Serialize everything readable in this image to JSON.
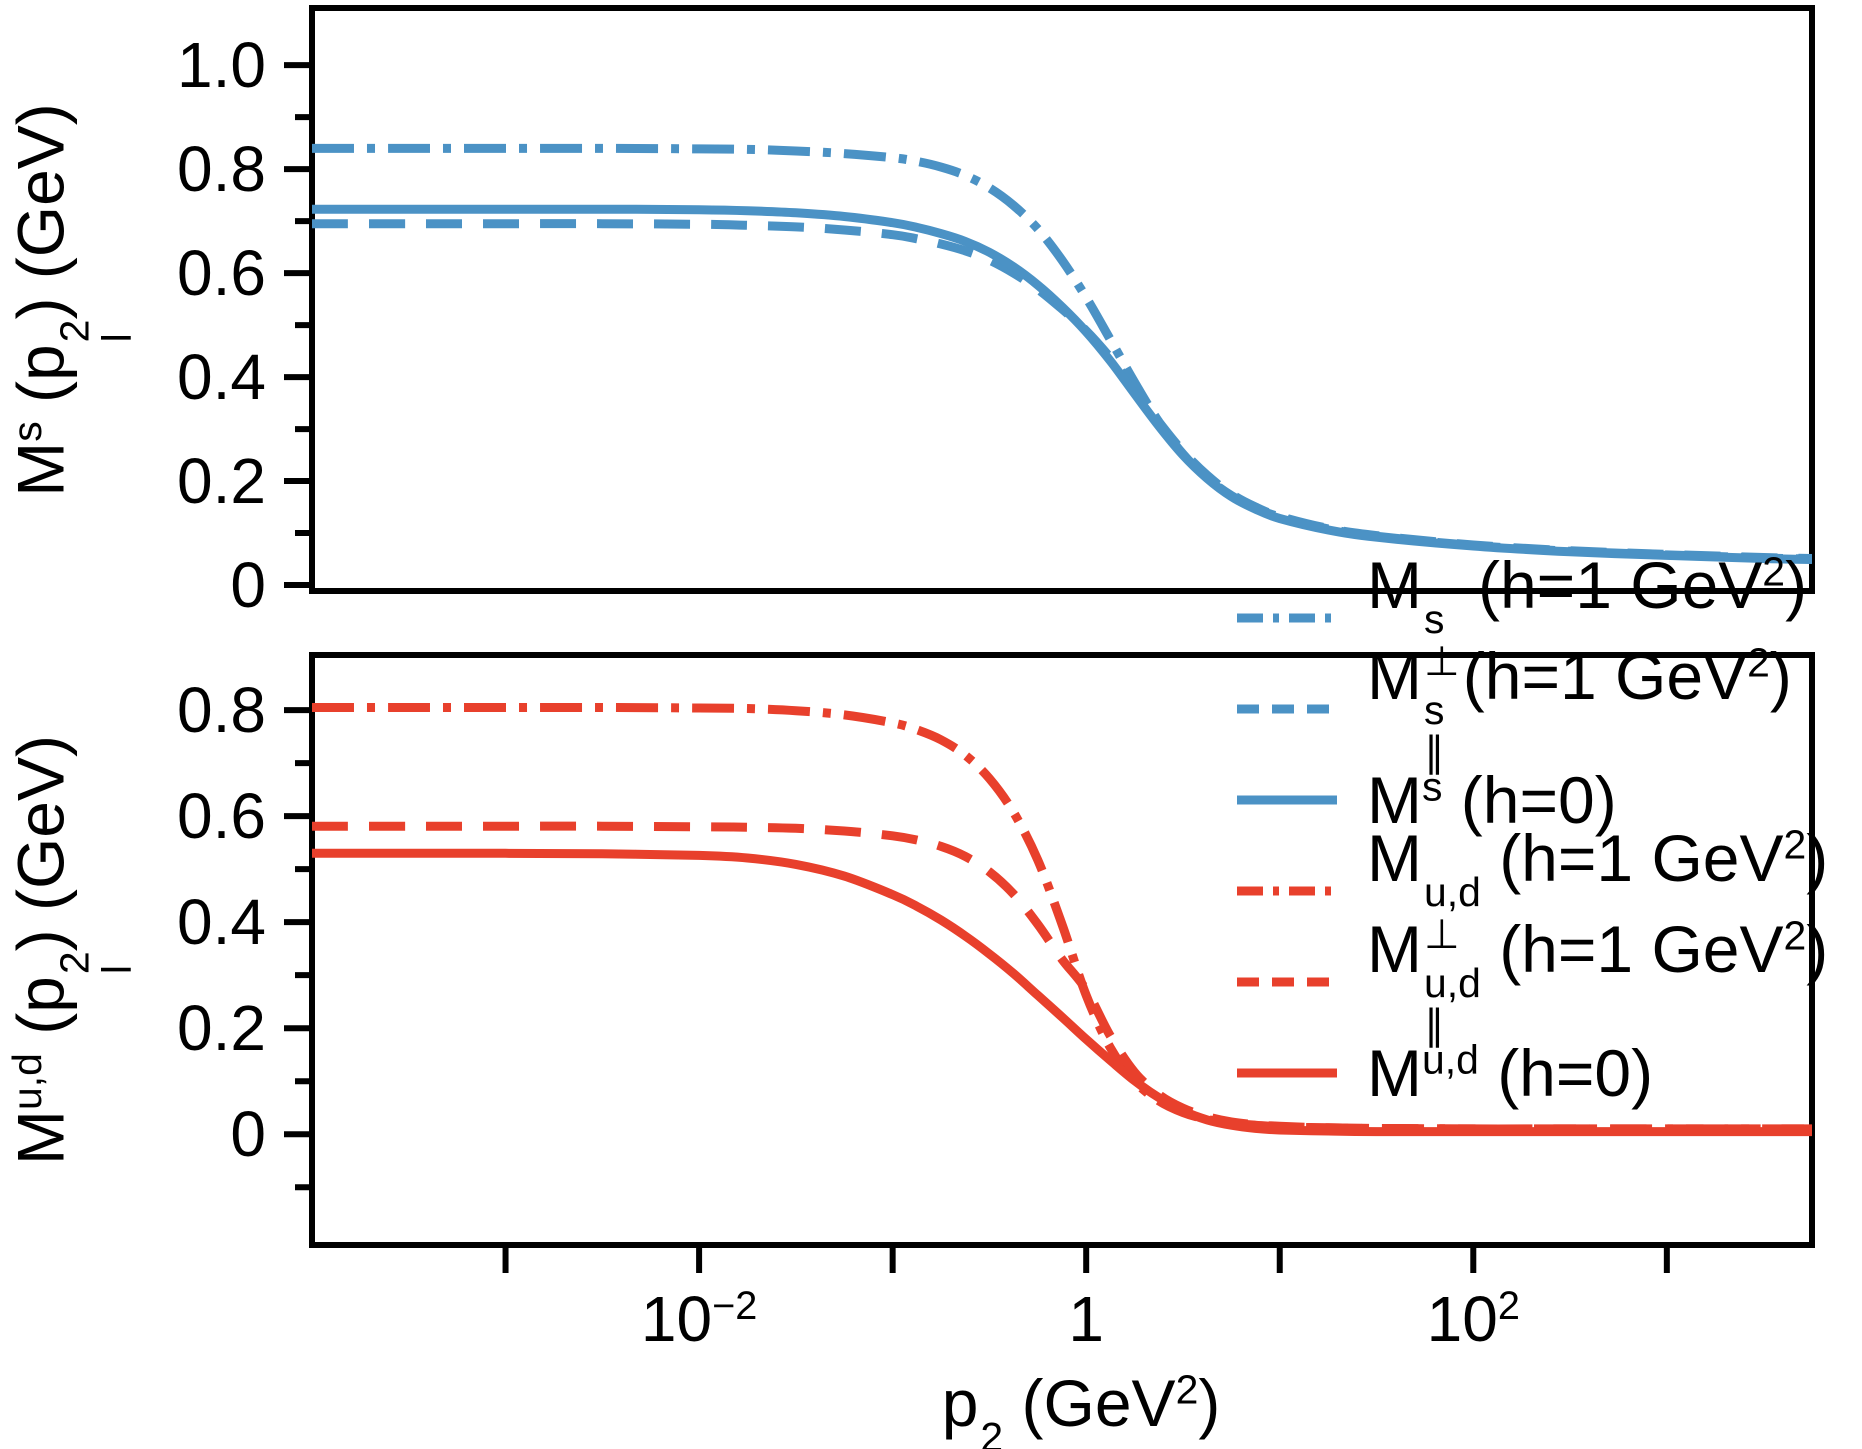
{
  "figure": {
    "background": "#ffffff",
    "frame_color": "#000000",
    "kind": "two-panel line chart, shared log x-axis"
  },
  "colors": {
    "blue": "#4b92c5",
    "red": "#e8402c",
    "black": "#000000"
  },
  "axes": {
    "x": {
      "scale": "log",
      "label_text": "p_l^2 (GeV^2)",
      "label": {
        "pre": "p",
        "p_sup": "2",
        "p_sub": "l",
        "mid": " (GeV",
        "unit_sup": "2",
        "end": ")"
      },
      "lim_log10": [
        -4,
        3.75
      ],
      "decade_ticks_log10": [
        -3,
        -2,
        -1,
        0,
        1,
        2,
        3
      ],
      "tick_labels": [
        {
          "log10": -2,
          "base": "10",
          "exp": "−2",
          "text": "10^-2"
        },
        {
          "log10": 0,
          "base": "1",
          "exp": "",
          "text": "1"
        },
        {
          "log10": 2,
          "base": "10",
          "exp": "2",
          "text": "10^2"
        }
      ]
    },
    "y_top": {
      "label_text": "M^s (p_l^2) (GeV)",
      "label": {
        "m": "M",
        "m_sup": "s",
        "o1": " (p",
        "p_sup": "2",
        "p_sub": "l",
        "o2": ") (GeV)"
      },
      "lim": [
        -0.0115,
        1.11
      ],
      "major_ticks": [
        {
          "v": 0,
          "label": "0"
        },
        {
          "v": 0.2,
          "label": "0.2"
        },
        {
          "v": 0.4,
          "label": "0.4"
        },
        {
          "v": 0.6,
          "label": "0.6"
        },
        {
          "v": 0.8,
          "label": "0.8"
        },
        {
          "v": 1.0,
          "label": "1.0"
        }
      ],
      "minor_ticks": [
        0.1,
        0.3,
        0.5,
        0.7,
        0.9
      ]
    },
    "y_bottom": {
      "label_text": "M^u,d (p_l^2) (GeV)",
      "label": {
        "m": "M",
        "m_sup": "u,d",
        "o1": " (p",
        "p_sup": "2",
        "p_sub": "l",
        "o2": ") (GeV)"
      },
      "lim": [
        -0.209,
        0.904
      ],
      "major_ticks": [
        {
          "v": 0,
          "label": "0"
        },
        {
          "v": 0.2,
          "label": "0.2"
        },
        {
          "v": 0.4,
          "label": "0.4"
        },
        {
          "v": 0.6,
          "label": "0.6"
        },
        {
          "v": 0.8,
          "label": "0.8"
        }
      ],
      "minor_ticks": [
        -0.1,
        0.1,
        0.3,
        0.5,
        0.7
      ]
    }
  },
  "chart_data": {
    "type": "line",
    "title": "",
    "xlabel": "p_l^2 (GeV^2)",
    "ylabel_top": "M^s (p_l^2) (GeV)",
    "ylabel_bottom": "M^u,d (p_l^2) (GeV)",
    "x_scale": "log",
    "x_lim": [
      0.0001,
      5600.0
    ],
    "legend_position": "middle-right",
    "grid": false,
    "x_log10": [
      -4,
      -3.5,
      -3,
      -2.5,
      -2,
      -1.75,
      -1.5,
      -1.25,
      -1,
      -0.875,
      -0.75,
      -0.625,
      -0.5,
      -0.375,
      -0.25,
      -0.125,
      0,
      0.125,
      0.25,
      0.375,
      0.5,
      0.625,
      0.75,
      0.875,
      1,
      1.25,
      1.5,
      2,
      2.5,
      3,
      3.5,
      3.75
    ],
    "series": [
      {
        "name": "M_perp_s",
        "text": "M^s_⊥ (h=1 GeV^2)",
        "panel": "top",
        "color": "blue",
        "style": "dashdot",
        "values": [
          0.84,
          0.84,
          0.84,
          0.84,
          0.839,
          0.838,
          0.835,
          0.83,
          0.822,
          0.815,
          0.804,
          0.788,
          0.764,
          0.73,
          0.685,
          0.625,
          0.553,
          0.472,
          0.39,
          0.314,
          0.252,
          0.206,
          0.172,
          0.148,
          0.131,
          0.108,
          0.094,
          0.076,
          0.065,
          0.058,
          0.052,
          0.05
        ]
      },
      {
        "name": "M_par_s",
        "text": "M^s_∥ (h=1 GeV^2)",
        "panel": "top",
        "color": "blue",
        "style": "dashed",
        "values": [
          0.695,
          0.695,
          0.695,
          0.695,
          0.694,
          0.692,
          0.689,
          0.683,
          0.674,
          0.666,
          0.656,
          0.643,
          0.625,
          0.6,
          0.569,
          0.531,
          0.489,
          0.437,
          0.377,
          0.314,
          0.257,
          0.211,
          0.175,
          0.15,
          0.132,
          0.109,
          0.095,
          0.077,
          0.066,
          0.059,
          0.053,
          0.051
        ]
      },
      {
        "name": "M_s",
        "text": "M^s (h=0)",
        "panel": "top",
        "color": "blue",
        "style": "solid",
        "values": [
          0.723,
          0.723,
          0.723,
          0.723,
          0.722,
          0.72,
          0.716,
          0.709,
          0.697,
          0.688,
          0.676,
          0.661,
          0.64,
          0.612,
          0.577,
          0.535,
          0.487,
          0.431,
          0.368,
          0.306,
          0.25,
          0.205,
          0.17,
          0.146,
          0.128,
          0.106,
          0.092,
          0.075,
          0.064,
          0.057,
          0.051,
          0.049
        ]
      },
      {
        "name": "M_perp_ud",
        "text": "M^u,d_⊥ (h=1 GeV^2)",
        "panel": "bottom",
        "color": "red",
        "style": "dashdot",
        "values": [
          0.805,
          0.805,
          0.805,
          0.805,
          0.804,
          0.803,
          0.799,
          0.791,
          0.776,
          0.763,
          0.744,
          0.715,
          0.671,
          0.607,
          0.517,
          0.396,
          0.262,
          0.163,
          0.1,
          0.063,
          0.041,
          0.028,
          0.021,
          0.017,
          0.014,
          0.012,
          0.011,
          0.01,
          0.01,
          0.01,
          0.01,
          0.01
        ]
      },
      {
        "name": "M_par_ud",
        "text": "M^u,d_∥ (h=1 GeV^2)",
        "panel": "bottom",
        "color": "red",
        "style": "dashed",
        "values": [
          0.581,
          0.581,
          0.581,
          0.581,
          0.58,
          0.579,
          0.577,
          0.572,
          0.563,
          0.555,
          0.543,
          0.524,
          0.495,
          0.453,
          0.396,
          0.33,
          0.272,
          0.185,
          0.117,
          0.075,
          0.049,
          0.033,
          0.023,
          0.018,
          0.015,
          0.012,
          0.011,
          0.01,
          0.01,
          0.01,
          0.01,
          0.01
        ]
      },
      {
        "name": "M_ud",
        "text": "M^u,d (h=0)",
        "panel": "bottom",
        "color": "red",
        "style": "solid",
        "values": [
          0.53,
          0.53,
          0.53,
          0.529,
          0.526,
          0.521,
          0.509,
          0.487,
          0.452,
          0.43,
          0.404,
          0.374,
          0.34,
          0.303,
          0.262,
          0.221,
          0.179,
          0.139,
          0.101,
          0.069,
          0.044,
          0.027,
          0.017,
          0.011,
          0.008,
          0.006,
          0.005,
          0.005,
          0.005,
          0.005,
          0.005,
          0.005
        ]
      }
    ]
  },
  "legend": {
    "items": [
      {
        "series": "M_perp_s",
        "text": "M^s_⊥ (h=1 GeV^2)",
        "m": "M",
        "sup": "s",
        "sub": "⊥",
        "note_pre": " (h=1 GeV",
        "note_sup": "2",
        "note_post": ")",
        "color": "blue",
        "style": "dashdot"
      },
      {
        "series": "M_par_s",
        "text": "M^s_∥ (h=1 GeV^2)",
        "m": "M",
        "sup": "s",
        "sub": "∥",
        "note_pre": " (h=1 GeV",
        "note_sup": "2",
        "note_post": ")",
        "color": "blue",
        "style": "dashed"
      },
      {
        "series": "M_s",
        "text": "M^s (h=0)",
        "m": "M",
        "sup": "s",
        "sub": "",
        "note_pre": " (h=0",
        "note_sup": "",
        "note_post": ")",
        "color": "blue",
        "style": "solid"
      },
      {
        "series": "M_perp_ud",
        "text": "M^u,d_⊥ (h=1 GeV^2)",
        "m": "M",
        "sup": "u,d",
        "sub": "⊥",
        "note_pre": " (h=1 GeV",
        "note_sup": "2",
        "note_post": ")",
        "color": "red",
        "style": "dashdot"
      },
      {
        "series": "M_par_ud",
        "text": "M^u,d_∥ (h=1 GeV^2)",
        "m": "M",
        "sup": "u,d",
        "sub": "∥",
        "note_pre": " (h=1 GeV",
        "note_sup": "2",
        "note_post": ")",
        "color": "red",
        "style": "dashed"
      },
      {
        "series": "M_ud",
        "text": "M^u,d (h=0)",
        "m": "M",
        "sup": "u,d",
        "sub": "",
        "note_pre": " (h=0",
        "note_sup": "",
        "note_post": ")",
        "color": "red",
        "style": "solid"
      }
    ]
  }
}
